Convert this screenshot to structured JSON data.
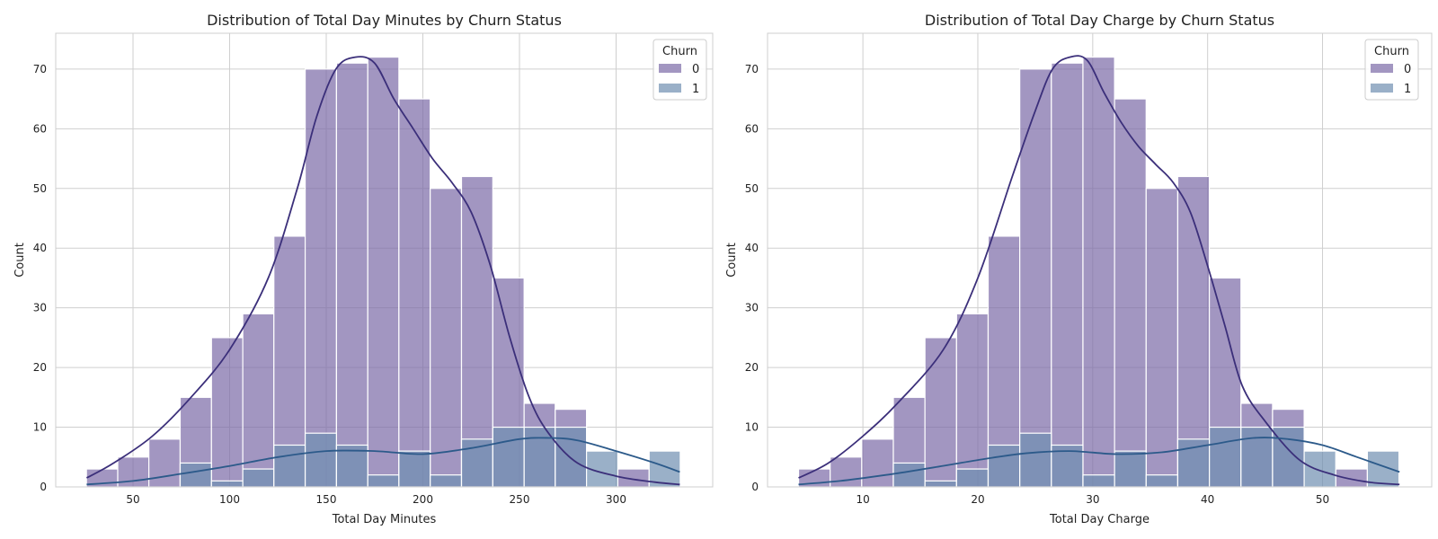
{
  "colors": {
    "churn0": "#7b6aa7",
    "churn1": "#6f8fb0",
    "kde0": "#3b2f7a",
    "kde1": "#2c5a8a",
    "grid": "#cfcfcf",
    "frame": "#cfcfcf"
  },
  "chart_data": [
    {
      "type": "bar",
      "title": "Distribution of Total Day Minutes by Churn Status",
      "xlabel": "Total Day Minutes",
      "ylabel": "Count",
      "xlim": [
        10,
        350
      ],
      "ylim": [
        0,
        76
      ],
      "xticks": [
        50,
        100,
        150,
        200,
        250,
        300
      ],
      "yticks": [
        0,
        10,
        20,
        30,
        40,
        50,
        60,
        70
      ],
      "grid": true,
      "legend": {
        "title": "Churn",
        "placement": "top-right",
        "entries": [
          "0",
          "1"
        ]
      },
      "bin_edges": [
        25.9,
        42.1,
        58.2,
        74.4,
        90.6,
        106.8,
        122.9,
        139.1,
        155.3,
        171.5,
        187.6,
        203.8,
        220.0,
        236.2,
        252.4,
        268.5,
        284.7,
        300.9,
        317.1,
        333.2
      ],
      "series": [
        {
          "name": "0",
          "values": [
            3,
            5,
            8,
            15,
            25,
            29,
            42,
            70,
            71,
            72,
            65,
            50,
            52,
            35,
            14,
            13,
            0,
            3,
            0
          ]
        },
        {
          "name": "1",
          "values": [
            0,
            0,
            0,
            4,
            1,
            3,
            7,
            9,
            7,
            2,
            6,
            2,
            8,
            10,
            10,
            10,
            6,
            0,
            6
          ]
        }
      ],
      "kde": [
        {
          "name": "0",
          "x": [
            26,
            40,
            60,
            80,
            100,
            120,
            135,
            145,
            155,
            165,
            175,
            185,
            195,
            205,
            215,
            225,
            235,
            245,
            255,
            265,
            280,
            300,
            320,
            333
          ],
          "y": [
            1.5,
            4,
            8.5,
            15,
            23,
            35,
            50,
            62,
            70,
            72,
            71,
            65,
            60,
            55,
            51,
            46,
            37,
            25,
            15,
            9,
            4,
            1.8,
            0.8,
            0.4
          ]
        },
        {
          "name": "1",
          "x": [
            26,
            50,
            75,
            100,
            125,
            150,
            175,
            200,
            225,
            250,
            265,
            280,
            300,
            320,
            333
          ],
          "y": [
            0.4,
            1,
            2.2,
            3.5,
            5,
            6,
            6,
            5.5,
            6.5,
            8,
            8.2,
            7.8,
            6,
            4,
            2.5
          ]
        }
      ]
    },
    {
      "type": "bar",
      "title": "Distribution of Total Day Charge by Churn Status",
      "xlabel": "Total Day Charge",
      "ylabel": "Count",
      "xlim": [
        1.7,
        59.5
      ],
      "ylim": [
        0,
        76
      ],
      "xticks": [
        10,
        20,
        30,
        40,
        50
      ],
      "yticks": [
        0,
        10,
        20,
        30,
        40,
        50,
        60,
        70
      ],
      "grid": true,
      "legend": {
        "title": "Churn",
        "placement": "top-right",
        "entries": [
          "0",
          "1"
        ]
      },
      "bin_edges": [
        4.4,
        7.15,
        9.9,
        12.65,
        15.4,
        18.15,
        20.9,
        23.65,
        26.4,
        29.15,
        31.9,
        34.65,
        37.4,
        40.15,
        42.9,
        45.65,
        48.4,
        51.15,
        53.9,
        56.65
      ],
      "series": [
        {
          "name": "0",
          "values": [
            3,
            5,
            8,
            15,
            25,
            29,
            42,
            70,
            71,
            72,
            65,
            50,
            52,
            35,
            14,
            13,
            0,
            3,
            0
          ]
        },
        {
          "name": "1",
          "values": [
            0,
            0,
            0,
            4,
            1,
            3,
            7,
            9,
            7,
            2,
            6,
            2,
            8,
            10,
            10,
            10,
            6,
            0,
            6
          ]
        }
      ],
      "kde": [
        {
          "name": "0",
          "x": [
            4.4,
            7,
            10,
            13,
            17,
            20,
            23,
            25,
            26.5,
            28,
            29.5,
            31,
            32.5,
            34,
            35.5,
            37,
            38.5,
            40,
            41.5,
            43,
            45,
            48,
            51,
            54,
            56.7
          ],
          "y": [
            1.5,
            4,
            8.5,
            14,
            23,
            35,
            52,
            63,
            70,
            72,
            71.5,
            66,
            61,
            57,
            54,
            51,
            46,
            37,
            27,
            17,
            11,
            4.5,
            2,
            0.8,
            0.4
          ]
        },
        {
          "name": "1",
          "x": [
            4.4,
            8,
            12,
            16,
            20,
            24,
            28,
            32,
            36,
            40,
            44,
            47,
            50,
            53,
            56.7
          ],
          "y": [
            0.4,
            1,
            2,
            3.2,
            4.5,
            5.6,
            6,
            5.5,
            5.8,
            7,
            8.2,
            8,
            7,
            5,
            2.5
          ]
        }
      ]
    }
  ]
}
